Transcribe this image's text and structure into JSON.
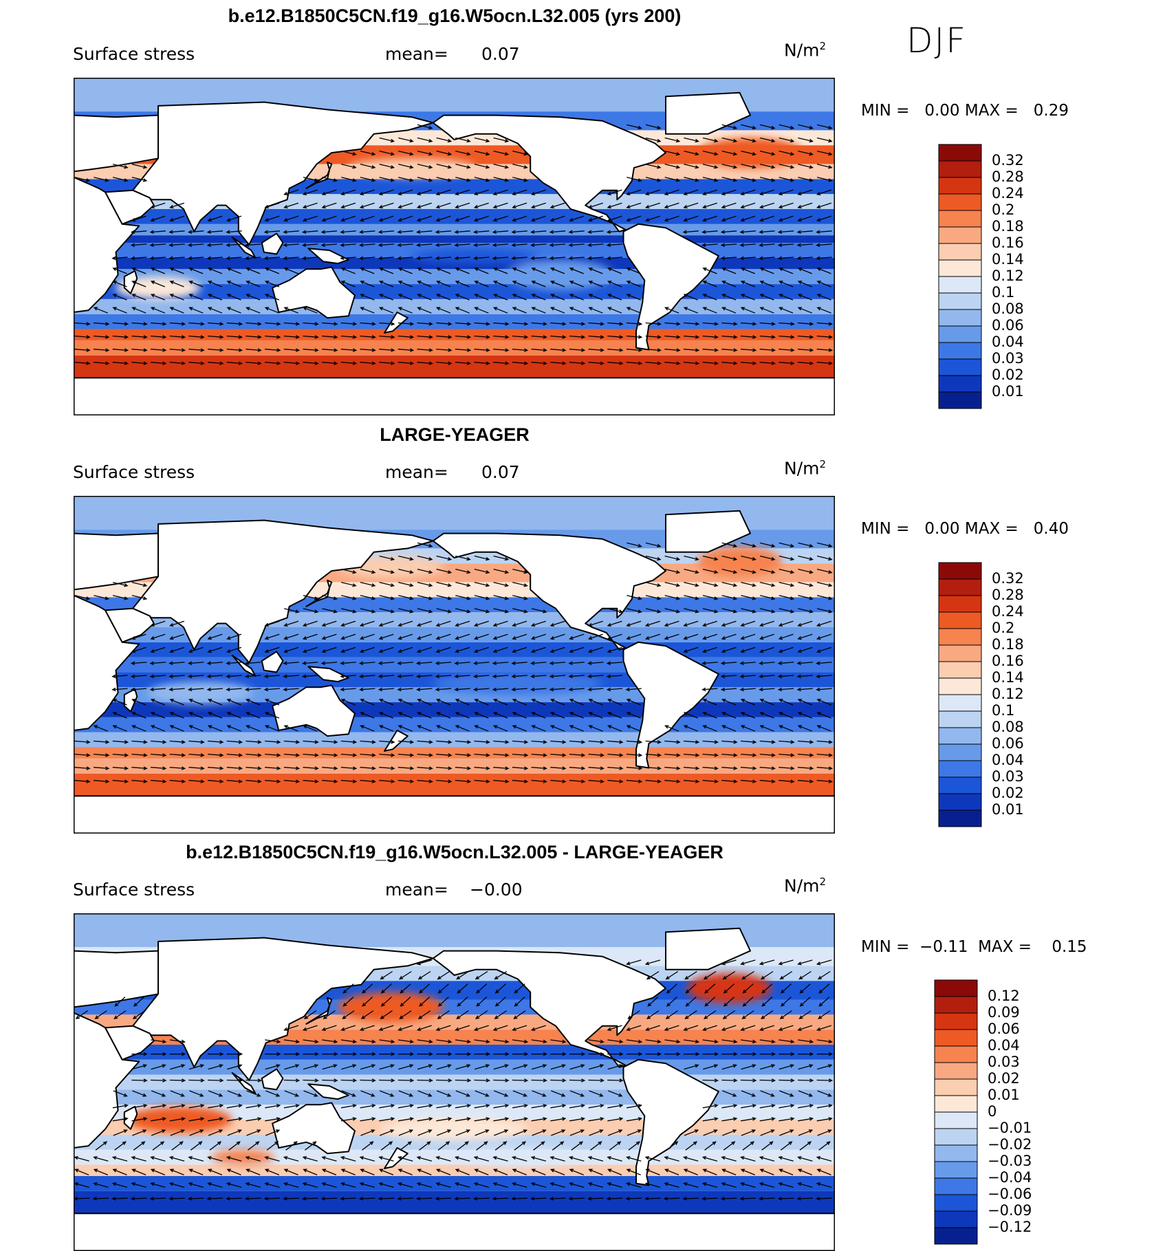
{
  "season": "DJF",
  "units_base": "N/m",
  "units_exp": "2",
  "panels": [
    {
      "title": "b.e12.B1850C5CN.f19_g16.W5ocn.L32.005 (yrs 200)",
      "variable": "Surface stress",
      "mean_label": "mean=",
      "mean_value": "0.07",
      "min_label": "MIN =",
      "min_value": "0.00",
      "max_label": "MAX =",
      "max_value": "0.29",
      "colorbar_levels": [
        "0.32",
        "0.28",
        "0.24",
        "0.2",
        "0.18",
        "0.16",
        "0.14",
        "0.12",
        "0.1",
        "0.08",
        "0.06",
        "0.04",
        "0.03",
        "0.02",
        "0.01"
      ],
      "colors": [
        "#8b0a08",
        "#b21f0e",
        "#d63512",
        "#ee5a24",
        "#f7834f",
        "#f9a982",
        "#fbcdb1",
        "#fde8d8",
        "#dce8f7",
        "#bcd4f2",
        "#92b8ee",
        "#679bea",
        "#3d78e6",
        "#1c56d8",
        "#0e38bb",
        "#06218f"
      ]
    },
    {
      "title": "LARGE-YEAGER",
      "variable": "Surface stress",
      "mean_label": "mean=",
      "mean_value": "0.07",
      "min_label": "MIN =",
      "min_value": "0.00",
      "max_label": "MAX =",
      "max_value": "0.40",
      "colorbar_levels": [
        "0.32",
        "0.28",
        "0.24",
        "0.2",
        "0.18",
        "0.16",
        "0.14",
        "0.12",
        "0.1",
        "0.08",
        "0.06",
        "0.04",
        "0.03",
        "0.02",
        "0.01"
      ],
      "colors": [
        "#8b0a08",
        "#b21f0e",
        "#d63512",
        "#ee5a24",
        "#f7834f",
        "#f9a982",
        "#fbcdb1",
        "#fde8d8",
        "#dce8f7",
        "#bcd4f2",
        "#92b8ee",
        "#679bea",
        "#3d78e6",
        "#1c56d8",
        "#0e38bb",
        "#06218f"
      ]
    },
    {
      "title": "b.e12.B1850C5CN.f19_g16.W5ocn.L32.005 - LARGE-YEAGER",
      "variable": "Surface stress",
      "mean_label": "mean=",
      "mean_value": "−0.00",
      "min_label": "MIN =",
      "min_value": "−0.11",
      "max_label": "MAX =",
      "max_value": "0.15",
      "colorbar_levels": [
        "0.12",
        "0.09",
        "0.06",
        "0.04",
        "0.03",
        "0.02",
        "0.01",
        "0",
        "−0.01",
        "−0.02",
        "−0.03",
        "−0.04",
        "−0.06",
        "−0.09",
        "−0.12"
      ],
      "colors": [
        "#8b0a08",
        "#b21f0e",
        "#d63512",
        "#ee5a24",
        "#f7834f",
        "#f9a982",
        "#fbcdb1",
        "#fde8d8",
        "#dce8f7",
        "#bcd4f2",
        "#92b8ee",
        "#679bea",
        "#3d78e6",
        "#1c56d8",
        "#0e38bb",
        "#06218f"
      ]
    }
  ]
}
